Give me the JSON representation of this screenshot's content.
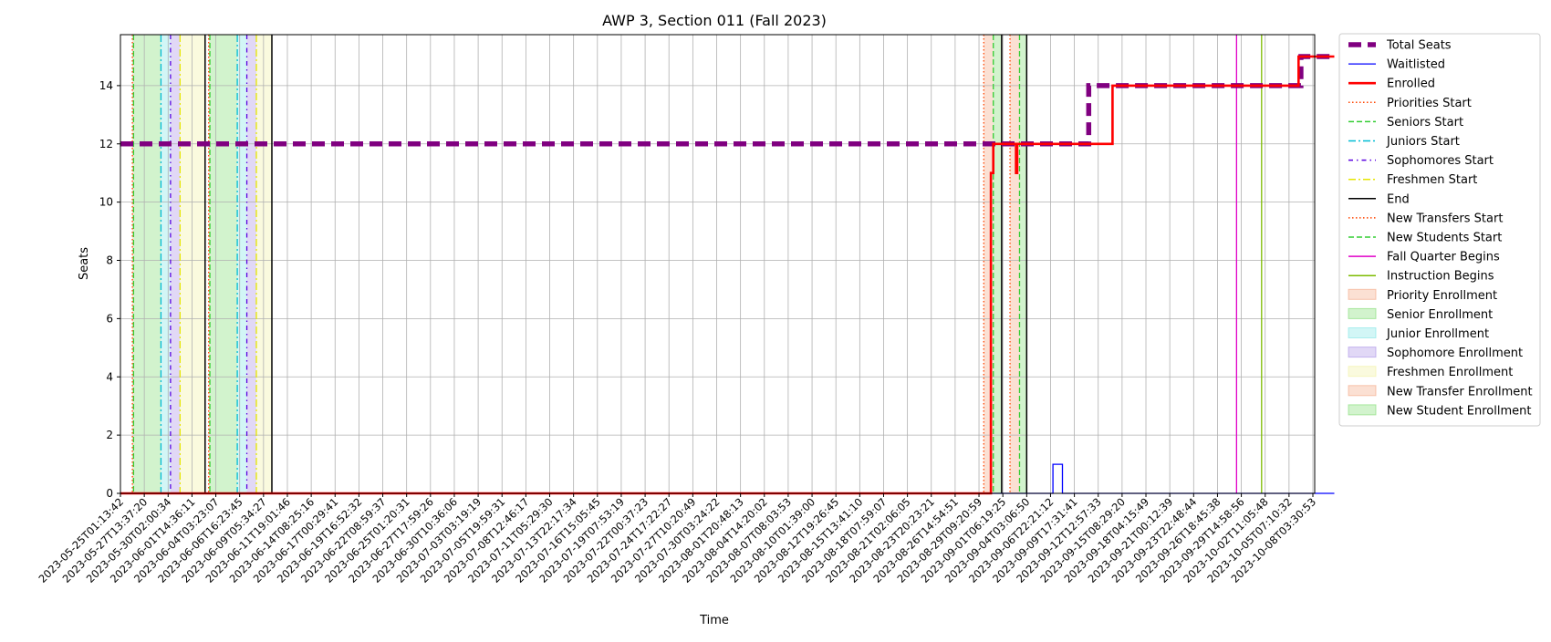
{
  "chart_data": {
    "type": "line",
    "title": "AWP 3, Section 011 (Fall 2023)",
    "xlabel": "Time",
    "ylabel": "Seats",
    "ylim": [
      0,
      15.75
    ],
    "yticks": [
      0,
      2,
      4,
      6,
      8,
      10,
      12,
      14
    ],
    "grid": true,
    "legend_position": "outside-right",
    "x_range": [
      "2023-05-25T01:13:42",
      "2023-10-08T03:30:53"
    ],
    "x_tick_labels": [
      "2023-05-25T01:13:42",
      "2023-05-27T13:37:20",
      "2023-05-30T02:00:34",
      "2023-06-01T14:36:11",
      "2023-06-04T03:23:07",
      "2023-06-06T16:23:45",
      "2023-06-09T05:34:27",
      "2023-06-11T19:01:46",
      "2023-06-14T08:25:16",
      "2023-06-17T00:29:41",
      "2023-06-19T16:52:32",
      "2023-06-22T08:59:37",
      "2023-06-25T01:20:31",
      "2023-06-27T17:59:26",
      "2023-06-30T10:36:06",
      "2023-07-03T03:19:19",
      "2023-07-05T19:59:31",
      "2023-07-08T12:46:17",
      "2023-07-11T05:29:30",
      "2023-07-13T22:17:34",
      "2023-07-16T15:05:45",
      "2023-07-19T07:53:19",
      "2023-07-22T00:37:23",
      "2023-07-24T17:22:27",
      "2023-07-27T10:20:49",
      "2023-07-30T03:24:22",
      "2023-08-01T20:48:13",
      "2023-08-04T14:20:02",
      "2023-08-07T08:03:53",
      "2023-08-10T01:39:00",
      "2023-08-12T19:26:45",
      "2023-08-15T13:41:10",
      "2023-08-18T07:59:07",
      "2023-08-21T02:06:05",
      "2023-08-23T20:23:21",
      "2023-08-26T14:54:51",
      "2023-08-29T09:20:59",
      "2023-09-01T06:19:25",
      "2023-09-04T03:06:50",
      "2023-09-06T22:21:12",
      "2023-09-09T17:31:41",
      "2023-09-12T12:57:33",
      "2023-09-15T08:29:20",
      "2023-09-18T04:15:49",
      "2023-09-21T00:12:39",
      "2023-09-23T22:48:44",
      "2023-09-26T18:45:38",
      "2023-09-29T14:58:56",
      "2023-10-02T11:05:48",
      "2023-10-05T07:10:32",
      "2023-10-08T03:30:53"
    ],
    "series": [
      {
        "name": "Total Seats",
        "color": "#800080",
        "style": "dashed-thick",
        "points": [
          [
            0,
            12
          ],
          [
            40.6,
            12
          ],
          [
            40.6,
            14
          ],
          [
            49.5,
            14
          ],
          [
            49.5,
            15
          ],
          [
            50.9,
            15
          ]
        ]
      },
      {
        "name": "Waitlisted",
        "color": "#0000ff",
        "style": "solid-thin",
        "points": [
          [
            0,
            0
          ],
          [
            39.1,
            0
          ],
          [
            39.1,
            1
          ],
          [
            39.5,
            1
          ],
          [
            39.5,
            0
          ],
          [
            50.9,
            0
          ]
        ]
      },
      {
        "name": "Enrolled",
        "color": "#ff0000",
        "style": "solid-thick",
        "points": [
          [
            0,
            0
          ],
          [
            36.5,
            0
          ],
          [
            36.5,
            11
          ],
          [
            36.6,
            11
          ],
          [
            36.6,
            12
          ],
          [
            37.55,
            12
          ],
          [
            37.55,
            11
          ],
          [
            37.6,
            11
          ],
          [
            37.6,
            12
          ],
          [
            41.6,
            12
          ],
          [
            41.6,
            14
          ],
          [
            49.4,
            14
          ],
          [
            49.4,
            15
          ],
          [
            50.9,
            15
          ]
        ]
      }
    ],
    "vertical_lines": [
      {
        "name": "Priorities Start",
        "color": "#ff4500",
        "style": "dotted",
        "x": [
          0.5,
          3.7,
          36.2,
          37.3
        ]
      },
      {
        "name": "Seniors Start",
        "color": "#32cd32",
        "style": "dashed",
        "x": [
          0.55,
          3.75,
          36.6,
          37.7
        ]
      },
      {
        "name": "Juniors Start",
        "color": "#00bcd4",
        "style": "dashdot",
        "x": [
          1.7,
          4.9
        ]
      },
      {
        "name": "Sophomores Start",
        "color": "#5a00e0",
        "style": "dashdot-dense",
        "x": [
          2.1,
          5.3
        ]
      },
      {
        "name": "Freshmen Start",
        "color": "#e6e600",
        "style": "dashdot",
        "x": [
          2.5,
          5.7
        ]
      },
      {
        "name": "End",
        "color": "#000000",
        "style": "solid",
        "x": [
          3.55,
          6.35,
          36.95,
          38.0
        ]
      },
      {
        "name": "New Transfers Start",
        "color": "#ff4500",
        "style": "dotted",
        "x": []
      },
      {
        "name": "New Students Start",
        "color": "#32cd32",
        "style": "dashed",
        "x": []
      },
      {
        "name": "Fall Quarter Begins",
        "color": "#e000c8",
        "style": "solid",
        "x": [
          46.8
        ]
      },
      {
        "name": "Instruction Begins",
        "color": "#7cbb00",
        "style": "solid",
        "x": [
          47.85
        ]
      }
    ],
    "shaded_regions": [
      {
        "name": "Priority Enrollment",
        "color": "#f4a582",
        "spans": [
          [
            0.5,
            0.55
          ],
          [
            3.7,
            3.75
          ],
          [
            36.2,
            36.6
          ]
        ]
      },
      {
        "name": "Senior Enrollment",
        "color": "#7fdc6f",
        "spans": [
          [
            0.55,
            1.7
          ],
          [
            3.75,
            4.9
          ],
          [
            36.6,
            36.95
          ]
        ]
      },
      {
        "name": "Junior Enrollment",
        "color": "#7fe6e6",
        "spans": [
          [
            1.7,
            2.1
          ],
          [
            4.9,
            5.3
          ]
        ]
      },
      {
        "name": "Sophomore Enrollment",
        "color": "#a98ee6",
        "spans": [
          [
            2.1,
            2.5
          ],
          [
            5.3,
            5.7
          ]
        ]
      },
      {
        "name": "Freshmen Enrollment",
        "color": "#f2f2a0",
        "spans": [
          [
            2.5,
            3.55
          ],
          [
            5.7,
            6.35
          ]
        ]
      },
      {
        "name": "New Transfer Enrollment",
        "color": "#f4a582",
        "spans": [
          [
            37.3,
            37.7
          ]
        ]
      },
      {
        "name": "New Student Enrollment",
        "color": "#7fdc6f",
        "spans": [
          [
            37.7,
            38.0
          ]
        ]
      }
    ]
  }
}
